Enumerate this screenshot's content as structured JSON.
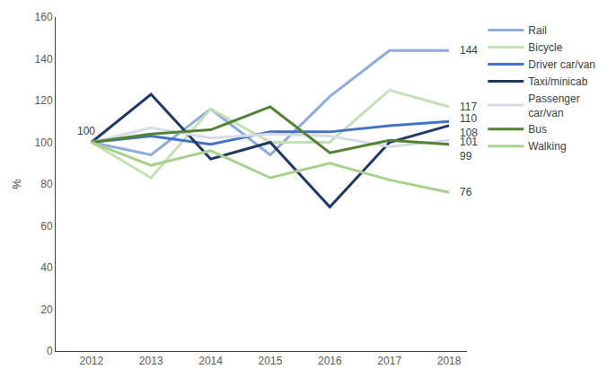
{
  "chart_data": {
    "type": "line",
    "y_label": "%",
    "x": [
      2012,
      2013,
      2014,
      2015,
      2016,
      2017,
      2018
    ],
    "xlim": [
      2011.4,
      2018.3
    ],
    "xticks": [
      2012,
      2013,
      2014,
      2015,
      2016,
      2017,
      2018
    ],
    "ylim": [
      0,
      160
    ],
    "yticks": [
      0,
      20,
      40,
      60,
      80,
      100,
      120,
      140,
      160
    ],
    "grid": false,
    "legend": "right",
    "series": [
      {
        "name": "Rail",
        "color": "#8faadc",
        "values": [
          100,
          94,
          116,
          94,
          122,
          144,
          144
        ]
      },
      {
        "name": "Bicycle",
        "color": "#c5e0b4",
        "values": [
          100,
          83,
          116,
          100,
          100,
          125,
          117
        ]
      },
      {
        "name": "Driver car/van",
        "color": "#4472c4",
        "values": [
          100,
          103,
          99,
          105,
          105,
          108,
          110
        ]
      },
      {
        "name": "Taxi/minicab",
        "color": "#203864",
        "values": [
          100,
          123,
          92,
          100,
          69,
          100,
          108
        ]
      },
      {
        "name": "Passenger car/van",
        "color": "#d6dce5",
        "values": [
          100,
          107,
          102,
          104,
          103,
          98,
          101
        ]
      },
      {
        "name": "Bus",
        "color": "#548235",
        "values": [
          100,
          104,
          106,
          117,
          95,
          101,
          99
        ]
      },
      {
        "name": "Walking",
        "color": "#a9d18e",
        "values": [
          100,
          89,
          96,
          83,
          90,
          82,
          76
        ]
      }
    ],
    "annotations": [
      {
        "x": 2012,
        "y": 100,
        "text": "100"
      },
      {
        "x": 2018,
        "y": 144,
        "text": "144"
      },
      {
        "x": 2018,
        "y": 117,
        "text": "117"
      },
      {
        "x": 2018,
        "y": 110,
        "text": "110"
      },
      {
        "x": 2018,
        "y": 108,
        "text": "108"
      },
      {
        "x": 2018,
        "y": 101,
        "text": "101"
      },
      {
        "x": 2018,
        "y": 99,
        "text": "99"
      },
      {
        "x": 2018,
        "y": 76,
        "text": "76"
      }
    ]
  }
}
